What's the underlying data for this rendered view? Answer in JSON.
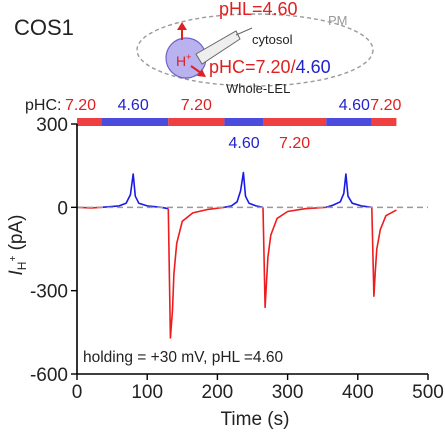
{
  "panel_label": "COS1",
  "schematic": {
    "ph_l": "pHL=4.60",
    "cytosol": "cytosol",
    "pm": "PM",
    "ph_c_prefix": "pHC=",
    "ph_c_red": "7.20",
    "ph_c_sep": "/",
    "ph_c_blue": "4.60",
    "h_label": "H",
    "h_sup": "+",
    "whole_lel": "Whole-LEL"
  },
  "phc_bar": {
    "label": "pHC:",
    "segments": [
      {
        "start": 0,
        "end": 35,
        "ph": "7.20",
        "color": "#ee4040"
      },
      {
        "start": 35,
        "end": 130,
        "ph": "4.60",
        "color": "#4b4bdd"
      },
      {
        "start": 130,
        "end": 210,
        "ph": "7.20",
        "color": "#ee4040"
      },
      {
        "start": 210,
        "end": 265,
        "ph": "4.60",
        "color": "#4b4bdd"
      },
      {
        "start": 265,
        "end": 355,
        "ph": "7.20",
        "color": "#ee4040"
      },
      {
        "start": 355,
        "end": 420,
        "ph": "4.60",
        "color": "#4b4bdd"
      },
      {
        "start": 420,
        "end": 455,
        "ph": "7.20",
        "color": "#ee4040"
      }
    ],
    "top_labels": [
      {
        "x": 5,
        "text": "7.20",
        "color": "#e02020"
      },
      {
        "x": 80,
        "text": "4.60",
        "color": "#2222cc"
      },
      {
        "x": 170,
        "text": "7.20",
        "color": "#e02020"
      },
      {
        "x": 395,
        "text": "4.60",
        "color": "#2222cc"
      },
      {
        "x": 440,
        "text": "7.20",
        "color": "#e02020"
      }
    ],
    "lower_labels": [
      {
        "x": 238,
        "text": "4.60",
        "color": "#2222cc"
      },
      {
        "x": 310,
        "text": "7.20",
        "color": "#e02020"
      }
    ]
  },
  "annotation": "holding = +30 mV, pHL =4.60",
  "colors": {
    "red": "#ee1c1c",
    "blue": "#1a1ae6",
    "zero_line": "#999999"
  },
  "chart_data": {
    "type": "line",
    "xlabel": "Time (s)",
    "ylabel_main": "I",
    "ylabel_sub": "H",
    "ylabel_sup": "+",
    "ylabel_unit": " (pA)",
    "xlim": [
      0,
      500
    ],
    "ylim": [
      -600,
      300
    ],
    "xticks": [
      0,
      100,
      200,
      300,
      400,
      500
    ],
    "yticks": [
      -600,
      -300,
      0,
      300
    ],
    "zero_line": {
      "y": 0,
      "from_x": 0,
      "to_x": 500,
      "dashed": true
    },
    "series": [
      {
        "color": "#ee1c1c",
        "x": [
          0,
          20,
          35
        ],
        "y": [
          0,
          -2,
          0
        ]
      },
      {
        "color": "#1a1ae6",
        "x": [
          35,
          60,
          70,
          76,
          80,
          83,
          88,
          100,
          120,
          130
        ],
        "y": [
          0,
          5,
          15,
          45,
          120,
          40,
          15,
          5,
          0,
          -5
        ]
      },
      {
        "color": "#ee1c1c",
        "x": [
          130,
          133,
          136,
          138,
          142,
          150,
          165,
          185,
          200,
          210
        ],
        "y": [
          -5,
          -470,
          -370,
          -240,
          -130,
          -50,
          -20,
          -8,
          -3,
          0
        ]
      },
      {
        "color": "#1a1ae6",
        "x": [
          210,
          220,
          228,
          233,
          237,
          240,
          245,
          255,
          265
        ],
        "y": [
          0,
          5,
          20,
          60,
          125,
          40,
          15,
          5,
          0
        ]
      },
      {
        "color": "#ee1c1c",
        "x": [
          265,
          268,
          270,
          272,
          276,
          285,
          300,
          325,
          355
        ],
        "y": [
          0,
          -360,
          -270,
          -180,
          -100,
          -40,
          -15,
          -5,
          0
        ]
      },
      {
        "color": "#1a1ae6",
        "x": [
          355,
          365,
          375,
          380,
          383,
          386,
          392,
          405,
          420
        ],
        "y": [
          0,
          8,
          20,
          50,
          120,
          40,
          15,
          5,
          0
        ]
      },
      {
        "color": "#ee1c1c",
        "x": [
          420,
          423,
          425,
          427,
          432,
          440,
          455
        ],
        "y": [
          0,
          -320,
          -230,
          -150,
          -80,
          -30,
          -10
        ]
      }
    ]
  }
}
